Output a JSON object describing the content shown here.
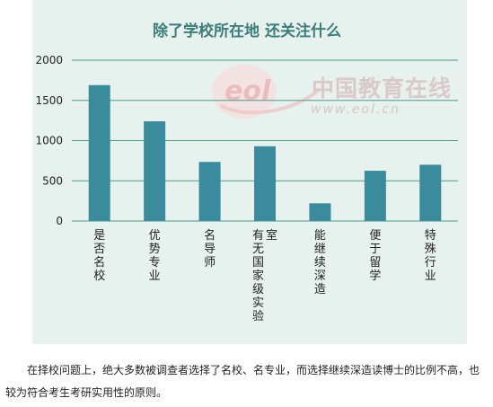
{
  "chart_data": {
    "type": "bar",
    "title": "除了学校所在地 还关注什么",
    "categories": [
      "是否名校",
      "优势专业",
      "名导师",
      "有无国家级实验室",
      "能继续深造",
      "便于留学",
      "特殊行业"
    ],
    "values": [
      1690,
      1240,
      735,
      930,
      220,
      625,
      700
    ],
    "ylim": [
      0,
      2000
    ],
    "y_ticks": [
      0,
      500,
      1000,
      1500,
      2000
    ],
    "xlabel": "",
    "ylabel": "",
    "grid": "horizontal",
    "colors": {
      "bar": "#3a8b9c",
      "panel": "#e7f1ed",
      "gridline": "#4a9d8c",
      "title": "#3b7d79",
      "text": "#222222"
    }
  },
  "watermark": {
    "brand": "中国教育在线",
    "url": "www.eol.cn",
    "logo_text": "eol"
  },
  "caption": {
    "text": "在择校问题上，绝大多数被调查者选择了名校、名专业，而选择继续深造读博士的比例不高，也较为符合考生考研实用性的原则。"
  }
}
